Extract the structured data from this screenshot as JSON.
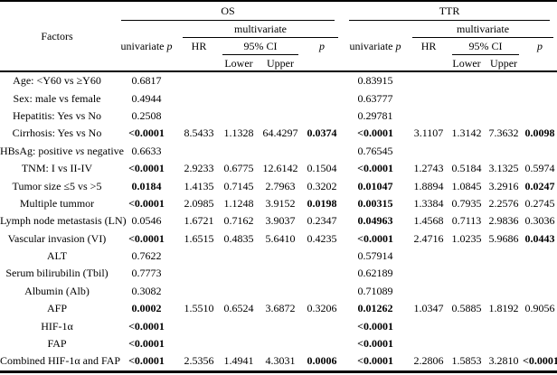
{
  "page": {
    "background": "#ffffff",
    "text_color": "#000000"
  },
  "table": {
    "factors_header": "Factors",
    "groups": [
      {
        "label": "OS"
      },
      {
        "label": "TTR"
      }
    ],
    "headers": {
      "univariate_prefix": "univariate",
      "p_italic": "p",
      "multivariate": "multivariate",
      "hr": "HR",
      "ci": "95% CI",
      "lower": "Lower",
      "upper": "Upper"
    },
    "rows": [
      {
        "factor": "Age: <Y60 vs ≥Y60",
        "cells": [
          {
            "v": "0.6817"
          },
          {},
          {},
          {},
          {},
          {
            "v": "0.83915"
          },
          {},
          {},
          {},
          {}
        ]
      },
      {
        "factor": "Sex: male vs female",
        "cells": [
          {
            "v": "0.4944"
          },
          {},
          {},
          {},
          {},
          {
            "v": "0.63777"
          },
          {},
          {},
          {},
          {}
        ]
      },
      {
        "factor": "Hepatitis: Yes vs No",
        "cells": [
          {
            "v": "0.2508"
          },
          {},
          {},
          {},
          {},
          {
            "v": "0.29781"
          },
          {},
          {},
          {},
          {}
        ]
      },
      {
        "factor": "Cirrhosis: Yes vs No",
        "cells": [
          {
            "v": "<0.0001",
            "b": true
          },
          {
            "v": "8.5433"
          },
          {
            "v": "1.1328"
          },
          {
            "v": "64.4297"
          },
          {
            "v": "0.0374",
            "b": true
          },
          {
            "v": "<0.0001",
            "b": true
          },
          {
            "v": "3.1107"
          },
          {
            "v": "1.3142"
          },
          {
            "v": "7.3632"
          },
          {
            "v": "0.0098",
            "b": true
          }
        ]
      },
      {
        "factor": [
          {
            "t": "HBsAg: positive "
          },
          {
            "t": "vs",
            "i": true
          },
          {
            "t": " negative"
          }
        ],
        "cells": [
          {
            "v": "0.6633"
          },
          {},
          {},
          {},
          {},
          {
            "v": "0.76545"
          },
          {},
          {},
          {},
          {}
        ]
      },
      {
        "factor": "TNM: I vs II-IV",
        "cells": [
          {
            "v": "<0.0001",
            "b": true
          },
          {
            "v": "2.9233"
          },
          {
            "v": "0.6775"
          },
          {
            "v": "12.6142"
          },
          {
            "v": "0.1504"
          },
          {
            "v": "<0.0001",
            "b": true
          },
          {
            "v": "1.2743"
          },
          {
            "v": "0.5184"
          },
          {
            "v": "3.1325"
          },
          {
            "v": "0.5974"
          }
        ]
      },
      {
        "factor": "Tumor size ≤5 vs >5",
        "cells": [
          {
            "v": "0.0184",
            "b": true
          },
          {
            "v": "1.4135"
          },
          {
            "v": "0.7145"
          },
          {
            "v": "2.7963"
          },
          {
            "v": "0.3202"
          },
          {
            "v": "0.01047",
            "b": true
          },
          {
            "v": "1.8894"
          },
          {
            "v": "1.0845"
          },
          {
            "v": "3.2916"
          },
          {
            "v": "0.0247",
            "b": true
          }
        ]
      },
      {
        "factor": "Multiple tummor",
        "cells": [
          {
            "v": "<0.0001",
            "b": true
          },
          {
            "v": "2.0985"
          },
          {
            "v": "1.1248"
          },
          {
            "v": "3.9152"
          },
          {
            "v": "0.0198",
            "b": true
          },
          {
            "v": "0.00315",
            "b": true
          },
          {
            "v": "1.3384"
          },
          {
            "v": "0.7935"
          },
          {
            "v": "2.2576"
          },
          {
            "v": "0.2745"
          }
        ]
      },
      {
        "factor": "Lymph node metastasis (LN)",
        "cells": [
          {
            "v": "0.0546"
          },
          {
            "v": "1.6721"
          },
          {
            "v": "0.7162"
          },
          {
            "v": "3.9037"
          },
          {
            "v": "0.2347"
          },
          {
            "v": "0.04963",
            "b": true
          },
          {
            "v": "1.4568"
          },
          {
            "v": "0.7113"
          },
          {
            "v": "2.9836"
          },
          {
            "v": "0.3036"
          }
        ]
      },
      {
        "factor": "Vascular invasion (VI)",
        "cells": [
          {
            "v": "<0.0001",
            "b": true
          },
          {
            "v": "1.6515"
          },
          {
            "v": "0.4835"
          },
          {
            "v": "5.6410"
          },
          {
            "v": "0.4235"
          },
          {
            "v": "<0.0001",
            "b": true
          },
          {
            "v": "2.4716"
          },
          {
            "v": "1.0235"
          },
          {
            "v": "5.9686"
          },
          {
            "v": "0.0443",
            "b": true
          }
        ]
      },
      {
        "factor": "ALT",
        "cells": [
          {
            "v": "0.7622"
          },
          {},
          {},
          {},
          {},
          {
            "v": "0.57914"
          },
          {},
          {},
          {},
          {}
        ]
      },
      {
        "factor": "Serum bilirubilin (Tbil)",
        "cells": [
          {
            "v": "0.7773"
          },
          {},
          {},
          {},
          {},
          {
            "v": "0.62189"
          },
          {},
          {},
          {},
          {}
        ]
      },
      {
        "factor": "Albumin (Alb)",
        "cells": [
          {
            "v": "0.3082"
          },
          {},
          {},
          {},
          {},
          {
            "v": "0.71089"
          },
          {},
          {},
          {},
          {}
        ]
      },
      {
        "factor": "AFP",
        "cells": [
          {
            "v": "0.0002",
            "b": true
          },
          {
            "v": "1.5510"
          },
          {
            "v": "0.6524"
          },
          {
            "v": "3.6872"
          },
          {
            "v": "0.3206"
          },
          {
            "v": "0.01262",
            "b": true
          },
          {
            "v": "1.0347"
          },
          {
            "v": "0.5885"
          },
          {
            "v": "1.8192"
          },
          {
            "v": "0.9056"
          }
        ]
      },
      {
        "factor": "HIF-1α",
        "cells": [
          {
            "v": "<0.0001",
            "b": true
          },
          {},
          {},
          {},
          {},
          {
            "v": "<0.0001",
            "b": true
          },
          {},
          {},
          {},
          {}
        ]
      },
      {
        "factor": "FAP",
        "cells": [
          {
            "v": "<0.0001",
            "b": true
          },
          {},
          {},
          {},
          {},
          {
            "v": "<0.0001",
            "b": true
          },
          {},
          {},
          {},
          {}
        ]
      },
      {
        "factor": "Combined HIF-1α and FAP",
        "cells": [
          {
            "v": "<0.0001",
            "b": true
          },
          {
            "v": "2.5356"
          },
          {
            "v": "1.4941"
          },
          {
            "v": "4.3031"
          },
          {
            "v": "0.0006",
            "b": true
          },
          {
            "v": "<0.0001",
            "b": true
          },
          {
            "v": "2.2806"
          },
          {
            "v": "1.5853"
          },
          {
            "v": "3.2810"
          },
          {
            "v": "<0.0001",
            "b": true
          }
        ]
      }
    ]
  }
}
